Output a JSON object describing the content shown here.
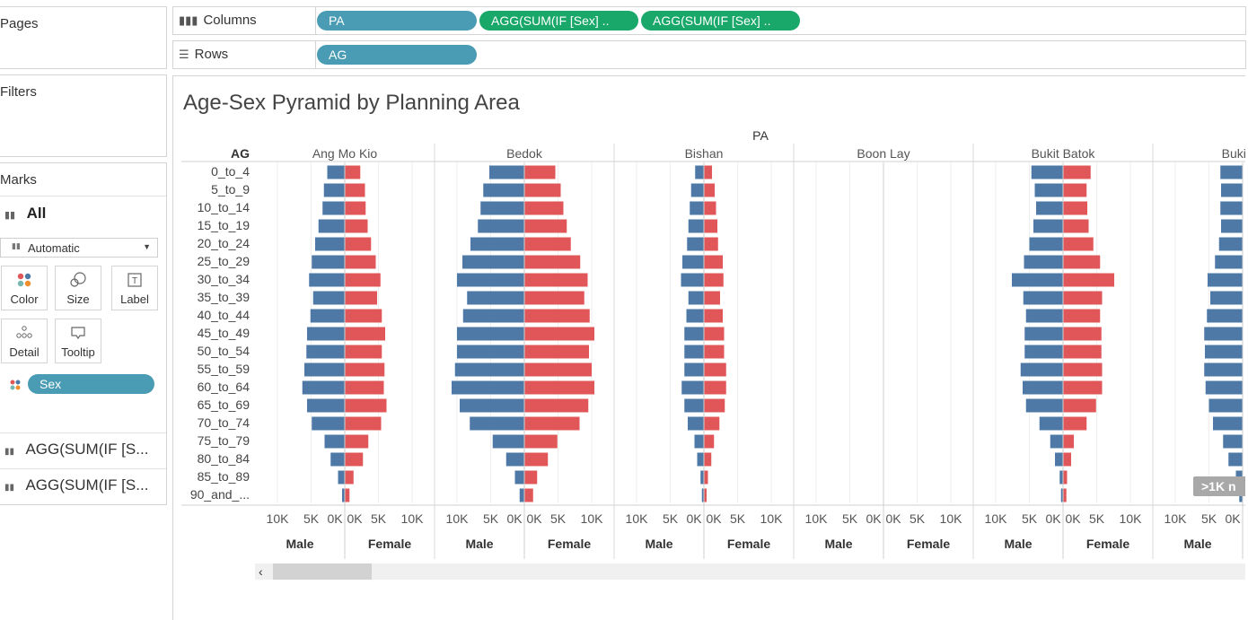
{
  "left_panels": {
    "pages_title": "Pages",
    "filters_title": "Filters",
    "marks_title": "Marks",
    "marks_all": "All",
    "mark_type": "Automatic",
    "buttons": [
      {
        "label": "Color",
        "icon": "color-dots-icon"
      },
      {
        "label": "Size",
        "icon": "size-icon"
      },
      {
        "label": "Label",
        "icon": "label-icon"
      },
      {
        "label": "Detail",
        "icon": "detail-icon"
      },
      {
        "label": "Tooltip",
        "icon": "tooltip-icon"
      }
    ],
    "sex_pill": "Sex",
    "agg_items": [
      "AGG(SUM(IF [S...",
      "AGG(SUM(IF [S..."
    ]
  },
  "shelves": {
    "columns_label": "Columns",
    "columns_pills": [
      "PA",
      "AGG(SUM(IF [Sex] ..",
      "AGG(SUM(IF [Sex] .."
    ],
    "rows_label": "Rows",
    "rows_pills": [
      "AG"
    ]
  },
  "colors": {
    "male": "#4e79a7",
    "female": "#e15759",
    "pill_blue": "#4a9bb4",
    "pill_green": "#19a86a"
  },
  "chart_data": {
    "type": "bar",
    "title": "Age-Sex Pyramid by Planning Area",
    "column_header": "PA",
    "row_header": "AG",
    "categories": [
      "0_to_4",
      "5_to_9",
      "10_to_14",
      "15_to_19",
      "20_to_24",
      "25_to_29",
      "30_to_34",
      "35_to_39",
      "40_to_44",
      "45_to_49",
      "50_to_54",
      "55_to_59",
      "60_to_64",
      "65_to_69",
      "70_to_74",
      "75_to_79",
      "80_to_84",
      "85_to_89",
      "90_and_..."
    ],
    "male_axis_ticks": [
      "10K",
      "5K",
      "0K"
    ],
    "female_axis_ticks": [
      "0K",
      "5K",
      "10K"
    ],
    "xlim": [
      0,
      12000
    ],
    "series_labels": [
      "Male",
      "Female"
    ],
    "overflow_badge": ">1K n",
    "panels": [
      {
        "name": "Ang Mo Kio",
        "male": [
          2600,
          3100,
          3300,
          3900,
          4400,
          4900,
          5300,
          4700,
          5100,
          5600,
          5700,
          6000,
          6300,
          5600,
          4900,
          3000,
          2100,
          1000,
          400
        ],
        "female": [
          2300,
          3000,
          3100,
          3400,
          3900,
          4600,
          5300,
          4800,
          5500,
          6000,
          5500,
          5900,
          5800,
          6200,
          5400,
          3500,
          2700,
          1300,
          700
        ]
      },
      {
        "name": "Bedok",
        "male": [
          5200,
          6100,
          6500,
          6900,
          8000,
          9200,
          10000,
          8500,
          9100,
          10000,
          10000,
          10300,
          10800,
          9600,
          8100,
          4700,
          2700,
          1400,
          700
        ],
        "female": [
          4600,
          5400,
          5800,
          6300,
          6900,
          8300,
          9400,
          8900,
          9700,
          10400,
          9600,
          10000,
          10400,
          9500,
          8200,
          4900,
          3500,
          1900,
          1300
        ]
      },
      {
        "name": "Bishan",
        "male": [
          1300,
          1900,
          2100,
          2300,
          2500,
          3200,
          3400,
          2300,
          2600,
          2900,
          2900,
          2900,
          3300,
          2900,
          2400,
          1400,
          1000,
          500,
          300
        ],
        "female": [
          1200,
          1600,
          1800,
          2000,
          2100,
          2800,
          2900,
          2400,
          2800,
          3000,
          3000,
          3300,
          3300,
          3100,
          2300,
          1500,
          1100,
          600,
          400
        ]
      },
      {
        "name": "Boon Lay",
        "male": [
          0,
          0,
          0,
          0,
          0,
          0,
          0,
          0,
          0,
          0,
          0,
          0,
          0,
          0,
          0,
          0,
          0,
          0,
          0
        ],
        "female": [
          0,
          0,
          0,
          0,
          0,
          0,
          0,
          0,
          0,
          0,
          0,
          0,
          0,
          0,
          0,
          0,
          0,
          0,
          0
        ]
      },
      {
        "name": "Bukit Batok",
        "male": [
          4700,
          4200,
          4000,
          4400,
          5000,
          5800,
          7600,
          5900,
          5500,
          5700,
          5700,
          6300,
          6000,
          5500,
          3500,
          1900,
          1200,
          500,
          300
        ],
        "female": [
          4100,
          3500,
          3600,
          3800,
          4500,
          5500,
          7600,
          5800,
          5500,
          5700,
          5700,
          5800,
          5800,
          4900,
          3500,
          1600,
          1200,
          600,
          500
        ]
      },
      {
        "name": "Bukit M",
        "male": [
          3300,
          3200,
          3300,
          3200,
          3500,
          4100,
          5200,
          4800,
          5300,
          5700,
          5600,
          5700,
          5500,
          5000,
          4400,
          2900,
          2100,
          1000,
          500
        ],
        "female": [
          0,
          0,
          0,
          0,
          0,
          0,
          0,
          0,
          0,
          0,
          0,
          0,
          0,
          0,
          0,
          0,
          0,
          0,
          0
        ]
      }
    ]
  }
}
